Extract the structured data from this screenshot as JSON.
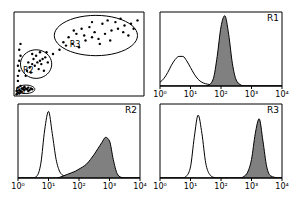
{
  "chart_data": [
    {
      "type": "scatter",
      "color": "#000000",
      "marker": "dot",
      "xlim": [
        0,
        100
      ],
      "ylim": [
        0,
        100
      ],
      "tick_labels": false,
      "x": [
        2,
        3,
        4,
        5,
        6,
        7,
        8,
        9,
        10,
        11,
        12,
        13,
        14,
        8,
        6,
        4,
        2,
        3,
        5,
        11,
        3,
        3,
        4,
        3,
        4,
        5,
        4,
        5,
        10,
        12,
        14,
        16,
        18,
        20,
        22,
        24,
        15,
        13,
        19,
        21,
        17,
        25,
        11,
        26,
        14,
        20,
        9,
        23,
        35,
        40,
        45,
        50,
        55,
        60,
        65,
        70,
        75,
        80,
        85,
        90,
        42,
        48,
        52,
        58,
        62,
        68,
        72,
        78,
        84,
        88,
        92,
        38,
        66,
        54,
        46,
        82,
        74,
        60,
        30,
        95
      ],
      "values": [
        2,
        4,
        3,
        6,
        5,
        8,
        7,
        9,
        8,
        10,
        7,
        9,
        8,
        11,
        9,
        7,
        6,
        10,
        12,
        6,
        18,
        24,
        30,
        36,
        42,
        48,
        55,
        62,
        30,
        34,
        38,
        36,
        40,
        42,
        44,
        46,
        44,
        28,
        32,
        38,
        48,
        52,
        40,
        40,
        50,
        52,
        24,
        30,
        55,
        60,
        62,
        58,
        66,
        70,
        68,
        74,
        78,
        80,
        84,
        86,
        70,
        74,
        80,
        82,
        76,
        86,
        90,
        88,
        76,
        72,
        80,
        64,
        62,
        72,
        78,
        92,
        66,
        88,
        50,
        90
      ],
      "gates": [
        {
          "label": "R1",
          "x": 9,
          "y": 8,
          "rx": 7,
          "ry": 5
        },
        {
          "label": "R2",
          "x": 17,
          "y": 38,
          "rx": 12,
          "ry": 17
        },
        {
          "label": "R3",
          "x": 63,
          "y": 72,
          "rx": 32,
          "ry": 24
        }
      ]
    },
    {
      "type": "area",
      "title": "R1",
      "log": "x",
      "xlim": [
        1,
        10000
      ],
      "ylim": [
        0,
        100
      ],
      "tick_labels": "x",
      "xticks": [
        {
          "value": 1,
          "label": "10⁰"
        },
        {
          "value": 10,
          "label": "10¹"
        },
        {
          "value": 100,
          "label": "10²"
        },
        {
          "value": 1000,
          "label": "10³"
        },
        {
          "value": 10000,
          "label": "10⁴"
        }
      ],
      "x": [
        1,
        1.33,
        1.78,
        2.37,
        3.16,
        4.22,
        5.62,
        7.5,
        10,
        13.3,
        17.8,
        23.7,
        31.6,
        42.2,
        56.2,
        75,
        100,
        133,
        178,
        237,
        316,
        422,
        562,
        750,
        1000,
        1330,
        1780,
        2370,
        3160,
        4220,
        5620,
        7500,
        10000
      ],
      "series": [
        {
          "color": "#ffffff",
          "values": [
            5,
            10,
            18,
            28,
            36,
            40,
            40,
            34,
            25,
            16,
            9,
            5,
            3,
            2,
            1,
            0,
            0,
            0,
            0,
            0,
            0,
            0,
            0,
            0,
            0,
            0,
            0,
            0,
            0,
            0,
            0,
            0,
            0
          ]
        },
        {
          "color": "#808080",
          "values": [
            0,
            0,
            0,
            0,
            0,
            0,
            0,
            0,
            0,
            0,
            0,
            0,
            0,
            2,
            10,
            40,
            80,
            95,
            70,
            30,
            8,
            2,
            0,
            0,
            0,
            0,
            0,
            0,
            0,
            0,
            0,
            0,
            0
          ]
        }
      ]
    },
    {
      "type": "area",
      "title": "R2",
      "log": "x",
      "xlim": [
        1,
        10000
      ],
      "ylim": [
        0,
        100
      ],
      "tick_labels": "x",
      "xticks": [
        {
          "value": 1,
          "label": "10⁰"
        },
        {
          "value": 10,
          "label": "10¹"
        },
        {
          "value": 100,
          "label": "10²"
        },
        {
          "value": 1000,
          "label": "10³"
        },
        {
          "value": 10000,
          "label": "10⁴"
        }
      ],
      "x": [
        1,
        1.33,
        1.78,
        2.37,
        3.16,
        4.22,
        5.62,
        7.5,
        10,
        13.3,
        17.8,
        23.7,
        31.6,
        42.2,
        56.2,
        75,
        100,
        133,
        178,
        237,
        316,
        422,
        562,
        750,
        1000,
        1330,
        1780,
        2370,
        3160,
        4220,
        5620,
        7500,
        10000
      ],
      "series": [
        {
          "color": "#ffffff",
          "values": [
            0,
            0,
            0,
            0,
            0,
            3,
            20,
            65,
            90,
            60,
            25,
            8,
            3,
            1,
            0,
            0,
            0,
            0,
            0,
            0,
            0,
            0,
            0,
            0,
            0,
            0,
            0,
            0,
            0,
            0,
            0,
            0,
            0
          ]
        },
        {
          "color": "#808080",
          "values": [
            0,
            0,
            0,
            0,
            0,
            0,
            0,
            0,
            0,
            0,
            0,
            1,
            3,
            5,
            7,
            9,
            12,
            15,
            19,
            25,
            32,
            40,
            48,
            55,
            50,
            25,
            6,
            1,
            0,
            0,
            0,
            0,
            0
          ]
        }
      ]
    },
    {
      "type": "area",
      "title": "R3",
      "log": "x",
      "xlim": [
        1,
        10000
      ],
      "ylim": [
        0,
        100
      ],
      "tick_labels": "x",
      "xticks": [
        {
          "value": 1,
          "label": "10⁰"
        },
        {
          "value": 10,
          "label": "10¹"
        },
        {
          "value": 100,
          "label": "10²"
        },
        {
          "value": 1000,
          "label": "10³"
        },
        {
          "value": 10000,
          "label": "10⁴"
        }
      ],
      "x": [
        1,
        1.33,
        1.78,
        2.37,
        3.16,
        4.22,
        5.62,
        7.5,
        10,
        13.3,
        17.8,
        23.7,
        31.6,
        42.2,
        56.2,
        75,
        100,
        133,
        178,
        237,
        316,
        422,
        562,
        750,
        1000,
        1330,
        1780,
        2370,
        3160,
        4220,
        5620,
        7500,
        10000
      ],
      "series": [
        {
          "color": "#ffffff",
          "values": [
            0,
            0,
            0,
            0,
            0,
            0,
            0,
            3,
            15,
            55,
            85,
            60,
            20,
            5,
            1,
            0,
            0,
            0,
            0,
            0,
            0,
            0,
            0,
            0,
            0,
            0,
            0,
            0,
            0,
            0,
            0,
            0,
            0
          ]
        },
        {
          "color": "#808080",
          "values": [
            0,
            0,
            0,
            0,
            0,
            0,
            0,
            0,
            0,
            0,
            0,
            0,
            0,
            0,
            0,
            0,
            0,
            0,
            0,
            0,
            0,
            0,
            2,
            8,
            25,
            60,
            80,
            50,
            15,
            3,
            1,
            0,
            0
          ]
        }
      ]
    }
  ]
}
